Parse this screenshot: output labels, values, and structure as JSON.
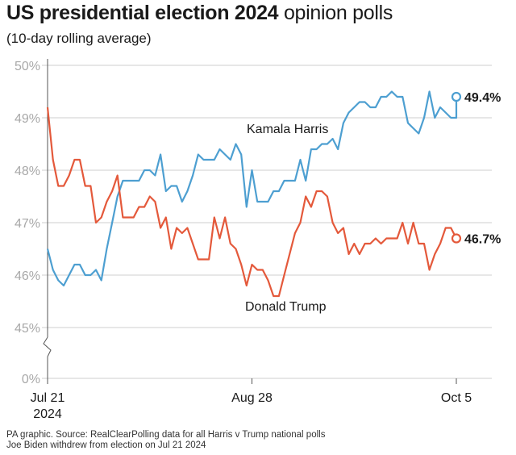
{
  "header": {
    "title_bold": "US presidential election 2024",
    "title_light": "opinion polls",
    "subtitle": "(10-day rolling average)"
  },
  "footer": {
    "line1": "PA graphic. Source: RealClearPolling data for all Harris v Trump national polls",
    "line2": "Joe Biden withdrew from election on Jul 21 2024"
  },
  "chart_data": {
    "type": "line",
    "title": "US presidential election 2024 opinion polls",
    "subtitle": "(10-day rolling average)",
    "y_tick_labels": [
      "0%",
      "45%",
      "46%",
      "47%",
      "48%",
      "49%",
      "50%"
    ],
    "y_ticks": [
      45,
      46,
      47,
      48,
      49,
      50
    ],
    "ylim": [
      45,
      50
    ],
    "y_axis_break": true,
    "grid": true,
    "x_tick_labels": [
      {
        "day": 0,
        "label": "Jul 21",
        "label2": "2024"
      },
      {
        "day": 38,
        "label": "Aug 28",
        "label2": ""
      },
      {
        "day": 76,
        "label": "Oct 5",
        "label2": ""
      }
    ],
    "x_range": [
      "Jul 21 2024",
      "Oct 5 2024"
    ],
    "series": [
      {
        "name": "Kamala Harris",
        "color": "#4d9fd1",
        "end_label": "49.4%",
        "points": [
          [
            "Jul 21",
            46.5
          ],
          [
            "Jul 22",
            46.1
          ],
          [
            "Jul 23",
            45.9
          ],
          [
            "Jul 24",
            45.8
          ],
          [
            "Jul 25",
            46.0
          ],
          [
            "Jul 26",
            46.2
          ],
          [
            "Jul 27",
            46.2
          ],
          [
            "Jul 28",
            46.0
          ],
          [
            "Jul 29",
            46.0
          ],
          [
            "Jul 30",
            46.1
          ],
          [
            "Jul 31",
            45.9
          ],
          [
            "Aug 1",
            46.5
          ],
          [
            "Aug 2",
            47.0
          ],
          [
            "Aug 3",
            47.5
          ],
          [
            "Aug 4",
            47.8
          ],
          [
            "Aug 5",
            47.8
          ],
          [
            "Aug 6",
            47.8
          ],
          [
            "Aug 7",
            47.8
          ],
          [
            "Aug 8",
            48.0
          ],
          [
            "Aug 9",
            48.0
          ],
          [
            "Aug 10",
            47.9
          ],
          [
            "Aug 11",
            48.3
          ],
          [
            "Aug 12",
            47.6
          ],
          [
            "Aug 13",
            47.7
          ],
          [
            "Aug 14",
            47.7
          ],
          [
            "Aug 15",
            47.4
          ],
          [
            "Aug 16",
            47.6
          ],
          [
            "Aug 17",
            47.9
          ],
          [
            "Aug 18",
            48.3
          ],
          [
            "Aug 19",
            48.2
          ],
          [
            "Aug 20",
            48.2
          ],
          [
            "Aug 21",
            48.2
          ],
          [
            "Aug 22",
            48.4
          ],
          [
            "Aug 23",
            48.3
          ],
          [
            "Aug 24",
            48.2
          ],
          [
            "Aug 25",
            48.5
          ],
          [
            "Aug 26",
            48.3
          ],
          [
            "Aug 27",
            47.3
          ],
          [
            "Aug 28",
            48.0
          ],
          [
            "Aug 29",
            47.4
          ],
          [
            "Aug 30",
            47.4
          ],
          [
            "Aug 31",
            47.4
          ],
          [
            "Sep 1",
            47.6
          ],
          [
            "Sep 2",
            47.6
          ],
          [
            "Sep 3",
            47.8
          ],
          [
            "Sep 4",
            47.8
          ],
          [
            "Sep 5",
            47.8
          ],
          [
            "Sep 6",
            48.2
          ],
          [
            "Sep 7",
            47.8
          ],
          [
            "Sep 8",
            48.4
          ],
          [
            "Sep 9",
            48.4
          ],
          [
            "Sep 10",
            48.5
          ],
          [
            "Sep 11",
            48.5
          ],
          [
            "Sep 12",
            48.6
          ],
          [
            "Sep 13",
            48.4
          ],
          [
            "Sep 14",
            48.9
          ],
          [
            "Sep 15",
            49.1
          ],
          [
            "Sep 16",
            49.2
          ],
          [
            "Sep 17",
            49.3
          ],
          [
            "Sep 18",
            49.3
          ],
          [
            "Sep 19",
            49.2
          ],
          [
            "Sep 20",
            49.2
          ],
          [
            "Sep 21",
            49.4
          ],
          [
            "Sep 22",
            49.4
          ],
          [
            "Sep 23",
            49.5
          ],
          [
            "Sep 24",
            49.4
          ],
          [
            "Sep 25",
            49.4
          ],
          [
            "Sep 26",
            48.9
          ],
          [
            "Sep 27",
            48.8
          ],
          [
            "Sep 28",
            48.7
          ],
          [
            "Sep 29",
            49.0
          ],
          [
            "Sep 30",
            49.5
          ],
          [
            "Oct 1",
            49.0
          ],
          [
            "Oct 2",
            49.2
          ],
          [
            "Oct 3",
            49.1
          ],
          [
            "Oct 4",
            49.0
          ],
          [
            "Oct 5",
            49.0
          ],
          [
            "Oct 5",
            49.4
          ]
        ]
      },
      {
        "name": "Donald Trump",
        "color": "#e4593b",
        "end_label": "46.7%",
        "points": [
          [
            "Jul 21",
            49.2
          ],
          [
            "Jul 22",
            48.2
          ],
          [
            "Jul 23",
            47.7
          ],
          [
            "Jul 24",
            47.7
          ],
          [
            "Jul 25",
            47.9
          ],
          [
            "Jul 26",
            48.2
          ],
          [
            "Jul 27",
            48.2
          ],
          [
            "Jul 28",
            47.7
          ],
          [
            "Jul 29",
            47.7
          ],
          [
            "Jul 30",
            47.0
          ],
          [
            "Jul 31",
            47.1
          ],
          [
            "Aug 1",
            47.4
          ],
          [
            "Aug 2",
            47.6
          ],
          [
            "Aug 3",
            47.9
          ],
          [
            "Aug 4",
            47.1
          ],
          [
            "Aug 5",
            47.1
          ],
          [
            "Aug 6",
            47.1
          ],
          [
            "Aug 7",
            47.3
          ],
          [
            "Aug 8",
            47.3
          ],
          [
            "Aug 9",
            47.5
          ],
          [
            "Aug 10",
            47.4
          ],
          [
            "Aug 11",
            46.9
          ],
          [
            "Aug 12",
            47.1
          ],
          [
            "Aug 13",
            46.5
          ],
          [
            "Aug 14",
            46.9
          ],
          [
            "Aug 15",
            46.8
          ],
          [
            "Aug 16",
            46.9
          ],
          [
            "Aug 17",
            46.6
          ],
          [
            "Aug 18",
            46.3
          ],
          [
            "Aug 19",
            46.3
          ],
          [
            "Aug 20",
            46.3
          ],
          [
            "Aug 21",
            47.1
          ],
          [
            "Aug 22",
            46.7
          ],
          [
            "Aug 23",
            47.1
          ],
          [
            "Aug 24",
            46.6
          ],
          [
            "Aug 25",
            46.5
          ],
          [
            "Aug 26",
            46.2
          ],
          [
            "Aug 27",
            45.8
          ],
          [
            "Aug 28",
            46.2
          ],
          [
            "Aug 29",
            46.1
          ],
          [
            "Aug 30",
            46.1
          ],
          [
            "Aug 31",
            45.9
          ],
          [
            "Sep 1",
            45.6
          ],
          [
            "Sep 2",
            45.6
          ],
          [
            "Sep 3",
            46.0
          ],
          [
            "Sep 4",
            46.4
          ],
          [
            "Sep 5",
            46.8
          ],
          [
            "Sep 6",
            47.0
          ],
          [
            "Sep 7",
            47.5
          ],
          [
            "Sep 8",
            47.3
          ],
          [
            "Sep 9",
            47.6
          ],
          [
            "Sep 10",
            47.6
          ],
          [
            "Sep 11",
            47.5
          ],
          [
            "Sep 12",
            47.0
          ],
          [
            "Sep 13",
            46.8
          ],
          [
            "Sep 14",
            46.9
          ],
          [
            "Sep 15",
            46.4
          ],
          [
            "Sep 16",
            46.6
          ],
          [
            "Sep 17",
            46.4
          ],
          [
            "Sep 18",
            46.6
          ],
          [
            "Sep 19",
            46.6
          ],
          [
            "Sep 20",
            46.7
          ],
          [
            "Sep 21",
            46.6
          ],
          [
            "Sep 22",
            46.7
          ],
          [
            "Sep 23",
            46.7
          ],
          [
            "Sep 24",
            46.7
          ],
          [
            "Sep 25",
            47.0
          ],
          [
            "Sep 26",
            46.6
          ],
          [
            "Sep 27",
            47.0
          ],
          [
            "Sep 28",
            46.6
          ],
          [
            "Sep 29",
            46.6
          ],
          [
            "Sep 30",
            46.1
          ],
          [
            "Oct 1",
            46.4
          ],
          [
            "Oct 2",
            46.6
          ],
          [
            "Oct 3",
            46.9
          ],
          [
            "Oct 4",
            46.9
          ],
          [
            "Oct 5",
            46.7
          ]
        ]
      }
    ]
  }
}
